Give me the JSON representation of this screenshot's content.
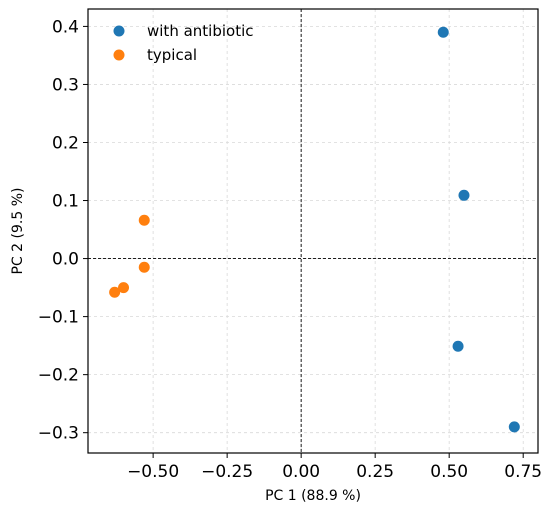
{
  "chart_data": {
    "type": "scatter",
    "xlabel": "PC 1 (88.9 %)",
    "ylabel": "PC 2 (9.5 %)",
    "xlim": [
      -0.72,
      0.8
    ],
    "ylim": [
      -0.335,
      0.43
    ],
    "xticks": [
      -0.5,
      -0.25,
      0.0,
      0.25,
      0.5,
      0.75
    ],
    "xtick_labels": [
      "−0.50",
      "−0.25",
      "0.00",
      "0.25",
      "0.50",
      "0.75"
    ],
    "yticks": [
      -0.3,
      -0.2,
      -0.1,
      0.0,
      0.1,
      0.2,
      0.3,
      0.4
    ],
    "ytick_labels": [
      "−0.3",
      "−0.2",
      "−0.1",
      "0.0",
      "0.1",
      "0.2",
      "0.3",
      "0.4"
    ],
    "grid": true,
    "zero_lines": true,
    "legend_position": "top-left",
    "series": [
      {
        "name": "with antibiotic",
        "color": "#1f77b4",
        "points": [
          [
            0.48,
            0.39
          ],
          [
            0.55,
            0.109
          ],
          [
            0.53,
            -0.151
          ],
          [
            0.72,
            -0.29
          ]
        ]
      },
      {
        "name": "typical",
        "color": "#ff7f0e",
        "points": [
          [
            -0.53,
            0.066
          ],
          [
            -0.53,
            -0.015
          ],
          [
            -0.6,
            -0.05
          ],
          [
            -0.63,
            -0.058
          ]
        ]
      }
    ]
  }
}
